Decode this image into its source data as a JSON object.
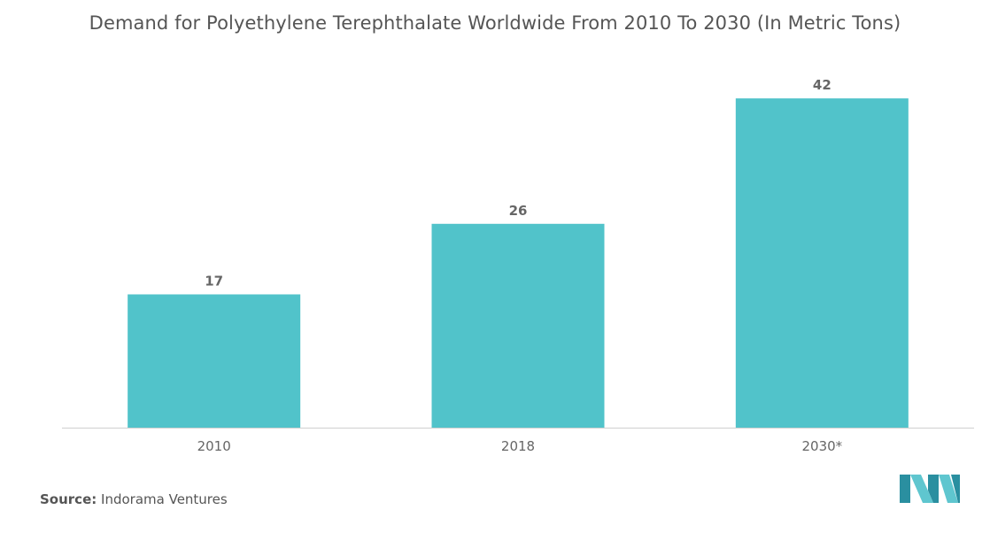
{
  "chart_data": {
    "type": "bar",
    "title": "Demand for Polyethylene Terephthalate Worldwide From 2010 To 2030 (In Metric Tons)",
    "categories": [
      "2010",
      "2018",
      "2030*"
    ],
    "values": [
      17,
      26,
      42
    ],
    "xlabel": "",
    "ylabel": "",
    "ylim": [
      0,
      44.5
    ],
    "grid": false,
    "bar_color": "#51c3ca",
    "axis_color": "#d0d0d0",
    "label_color": "#666666"
  },
  "source": {
    "label": "Source:",
    "text": "Indorama Ventures"
  },
  "logo": {
    "icon": "mordor-intelligence-logo-icon",
    "color_dark": "#2a8fa0",
    "color_light": "#5fc6cf"
  }
}
